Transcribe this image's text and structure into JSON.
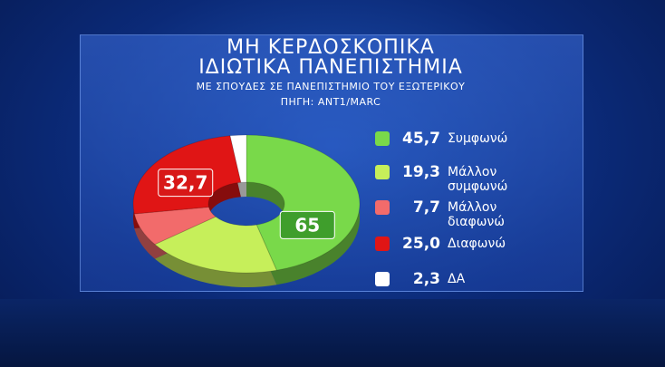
{
  "chart_data": {
    "type": "donut",
    "title": [
      "ΜΗ ΚΕΡΔΟΣΚΟΠΙΚΑ",
      "ΙΔΙΩΤΙΚΑ ΠΑΝΕΠΙΣΤΗΜΙΑ"
    ],
    "subtitle": "ΜΕ ΣΠΟΥΔΕΣ ΣΕ ΠΑΝΕΠΙΣΤΗΜΙΟ ΤΟΥ ΕΞΩΤΕΡΙΚΟΥ",
    "source": "ΠΗΓΗ: ANT1/MARC",
    "categories": [
      "Συμφωνώ",
      "Μάλλον συμφωνώ",
      "Μάλλον διαφωνώ",
      "Διαφωνώ",
      "ΔΑ"
    ],
    "values": [
      45.7,
      19.3,
      7.7,
      25.0,
      2.3
    ],
    "value_labels": [
      "45,7",
      "19,3",
      "7,7",
      "25,0",
      "2,3"
    ],
    "colors": [
      "#79d94a",
      "#c6ef5a",
      "#f26b6b",
      "#e01515",
      "#ffffff"
    ],
    "groups": {
      "values": [
        65,
        32.7
      ],
      "value_labels": [
        "65",
        "32,7"
      ],
      "colors": [
        "#3f9e2c",
        "#d81818"
      ]
    }
  }
}
